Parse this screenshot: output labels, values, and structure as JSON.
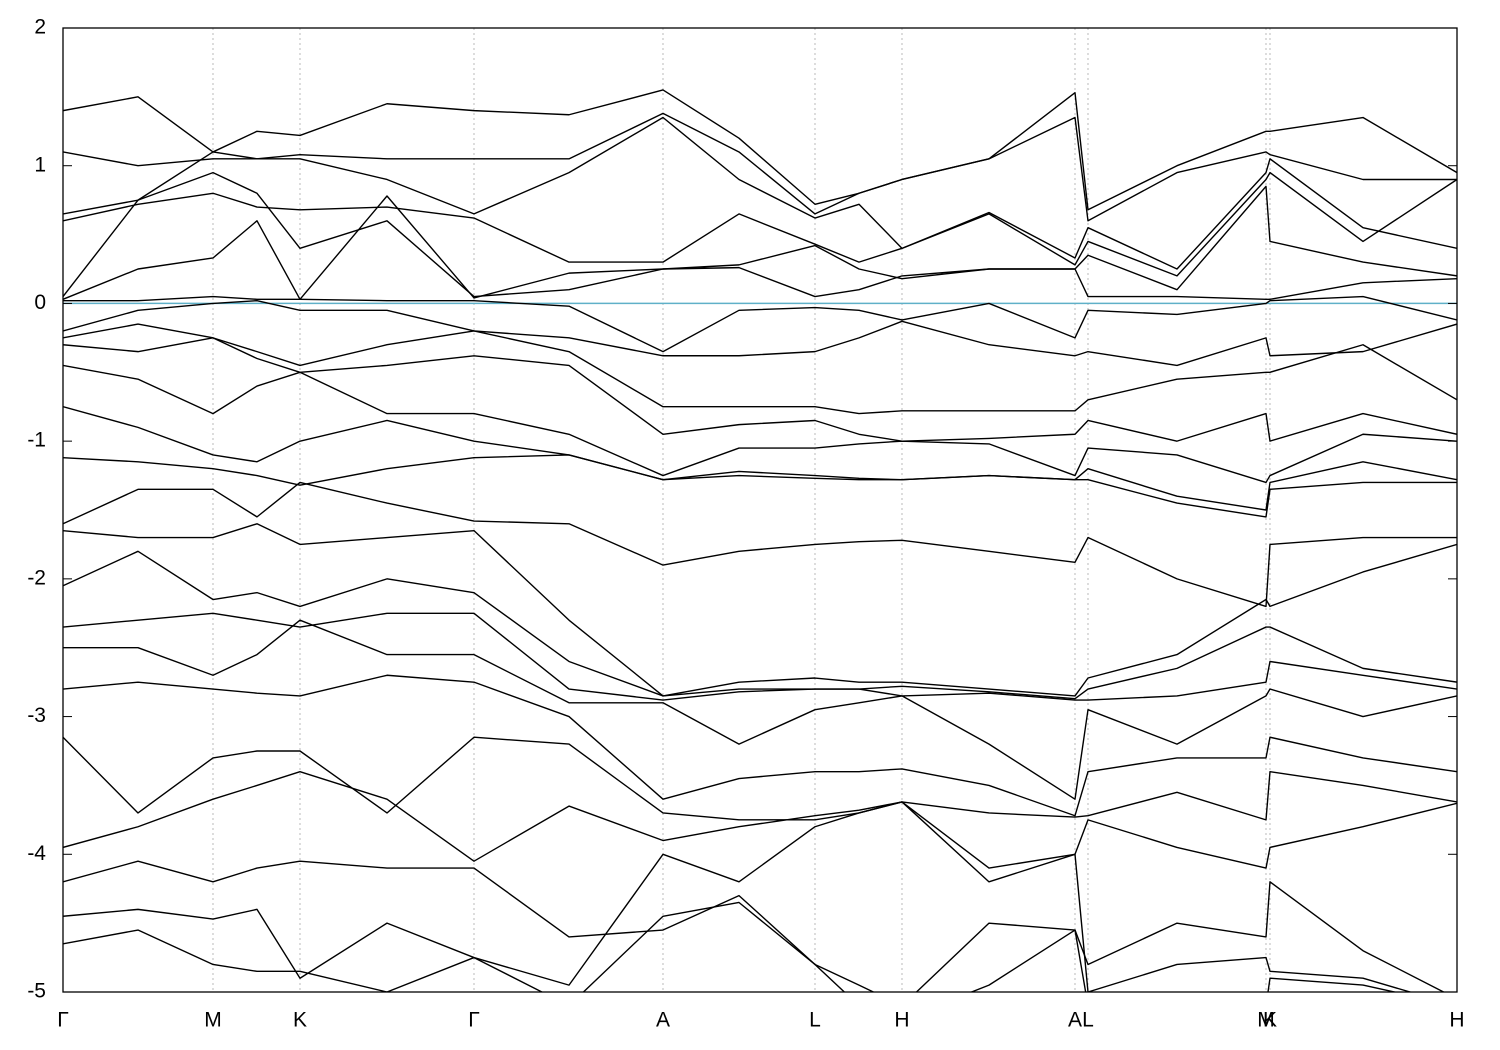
{
  "chart_data": {
    "type": "line",
    "x": [
      0,
      0.375,
      0.75,
      0.97,
      1.185,
      1.62,
      2.055,
      2.53,
      3.0,
      3.38,
      3.76,
      3.98,
      4.195,
      4.63,
      5.06,
      5.125,
      5.57,
      6.015,
      6.035,
      6.5,
      6.97
    ],
    "xlim": [
      0,
      6.97
    ],
    "xticks": [
      {
        "value": 0,
        "label": "Γ"
      },
      {
        "value": 0.75,
        "label": "M"
      },
      {
        "value": 1.185,
        "label": "K"
      },
      {
        "value": 2.055,
        "label": "Γ"
      },
      {
        "value": 3.0,
        "label": "A"
      },
      {
        "value": 3.76,
        "label": "L"
      },
      {
        "value": 4.195,
        "label": "H"
      },
      {
        "value": 5.06,
        "label": "A"
      },
      {
        "value": 5.125,
        "label": "L"
      },
      {
        "value": 6.015,
        "label": "M"
      },
      {
        "value": 6.035,
        "label": "K"
      },
      {
        "value": 6.97,
        "label": "H"
      }
    ],
    "ylim": [
      -5,
      2
    ],
    "yticks": [
      -5,
      -4,
      -3,
      -2,
      -1,
      0,
      1,
      2
    ],
    "grid": true,
    "fermi_level": 0,
    "fermi_color": "#5fb0c8",
    "series": [
      {
        "color": "#000000",
        "values": [
          1.4,
          1.5,
          1.1,
          1.25,
          1.22,
          1.45,
          1.4,
          1.37,
          1.55,
          1.2,
          0.72,
          0.8,
          0.9,
          1.05,
          1.53,
          0.68,
          1.0,
          1.25,
          1.25,
          1.35,
          0.95
        ]
      },
      {
        "color": "#000000",
        "values": [
          1.1,
          1.0,
          1.05,
          1.05,
          1.08,
          1.05,
          1.05,
          1.05,
          1.38,
          1.1,
          0.65,
          0.8,
          0.9,
          1.05,
          1.35,
          0.6,
          0.95,
          1.1,
          1.08,
          0.9,
          0.9
        ]
      },
      {
        "color": "#000000",
        "values": [
          0.65,
          0.75,
          1.1,
          1.05,
          1.05,
          0.9,
          0.65,
          0.95,
          1.35,
          0.9,
          0.62,
          0.72,
          0.4,
          0.66,
          0.33,
          0.55,
          0.25,
          0.95,
          1.05,
          0.55,
          0.4
        ]
      },
      {
        "color": "#000000",
        "values": [
          0.6,
          0.72,
          0.8,
          0.7,
          0.68,
          0.7,
          0.62,
          0.3,
          0.3,
          0.65,
          0.43,
          0.3,
          0.4,
          0.65,
          0.28,
          0.45,
          0.2,
          0.9,
          0.95,
          0.45,
          0.9
        ]
      },
      {
        "color": "#000000",
        "values": [
          0.05,
          0.75,
          0.95,
          0.8,
          0.4,
          0.6,
          0.05,
          0.1,
          0.25,
          0.28,
          0.42,
          0.25,
          0.18,
          0.25,
          0.25,
          0.35,
          0.1,
          0.85,
          0.45,
          0.3,
          0.2
        ]
      },
      {
        "color": "#000000",
        "values": [
          0.03,
          0.25,
          0.33,
          0.6,
          0.03,
          0.78,
          0.04,
          0.22,
          0.25,
          0.26,
          0.05,
          0.1,
          0.2,
          0.25,
          0.25,
          0.05,
          0.05,
          0.03,
          0.03,
          0.15,
          0.18
        ]
      },
      {
        "color": "#000000",
        "values": [
          0.02,
          0.02,
          0.05,
          0.03,
          0.03,
          0.02,
          0.02,
          -0.02,
          -0.35,
          -0.05,
          -0.03,
          -0.05,
          -0.12,
          0.0,
          -0.25,
          -0.05,
          -0.08,
          0.0,
          0.02,
          0.05,
          -0.12
        ]
      },
      {
        "color": "#000000",
        "values": [
          -0.2,
          -0.05,
          0.0,
          0.02,
          -0.05,
          -0.05,
          -0.2,
          -0.25,
          -0.38,
          -0.38,
          -0.35,
          -0.25,
          -0.13,
          -0.3,
          -0.38,
          -0.35,
          -0.45,
          -0.25,
          -0.38,
          -0.35,
          -0.15
        ]
      },
      {
        "color": "#000000",
        "values": [
          -0.25,
          -0.15,
          -0.25,
          -0.35,
          -0.45,
          -0.3,
          -0.2,
          -0.35,
          -0.75,
          -0.75,
          -0.75,
          -0.8,
          -0.78,
          -0.78,
          -0.78,
          -0.7,
          -0.55,
          -0.5,
          -0.5,
          -0.3,
          -0.7
        ]
      },
      {
        "color": "#000000",
        "values": [
          -0.3,
          -0.35,
          -0.25,
          -0.4,
          -0.5,
          -0.45,
          -0.38,
          -0.45,
          -0.95,
          -0.88,
          -0.85,
          -0.95,
          -1.0,
          -0.98,
          -0.95,
          -0.85,
          -1.0,
          -0.8,
          -1.0,
          -0.8,
          -0.95
        ]
      },
      {
        "color": "#000000",
        "values": [
          -0.45,
          -0.55,
          -0.8,
          -0.6,
          -0.5,
          -0.8,
          -0.8,
          -0.95,
          -1.25,
          -1.05,
          -1.05,
          -1.02,
          -1.0,
          -1.02,
          -1.25,
          -1.05,
          -1.1,
          -1.3,
          -1.25,
          -0.95,
          -1.0
        ]
      },
      {
        "color": "#000000",
        "values": [
          -0.75,
          -0.9,
          -1.1,
          -1.15,
          -1.0,
          -0.85,
          -1.0,
          -1.1,
          -1.28,
          -1.22,
          -1.25,
          -1.27,
          -1.28,
          -1.25,
          -1.28,
          -1.2,
          -1.4,
          -1.5,
          -1.3,
          -1.15,
          -1.28
        ]
      },
      {
        "color": "#000000",
        "values": [
          -1.12,
          -1.15,
          -1.2,
          -1.25,
          -1.32,
          -1.2,
          -1.12,
          -1.1,
          -1.28,
          -1.25,
          -1.27,
          -1.28,
          -1.28,
          -1.25,
          -1.28,
          -1.28,
          -1.45,
          -1.55,
          -1.35,
          -1.3,
          -1.3
        ]
      },
      {
        "color": "#000000",
        "values": [
          -1.6,
          -1.35,
          -1.35,
          -1.55,
          -1.3,
          -1.45,
          -1.58,
          -1.6,
          -1.9,
          -1.8,
          -1.75,
          -1.73,
          -1.72,
          -1.8,
          -1.88,
          -1.7,
          -2.0,
          -2.2,
          -1.75,
          -1.7,
          -1.7
        ]
      },
      {
        "color": "#000000",
        "values": [
          -1.65,
          -1.7,
          -1.7,
          -1.6,
          -1.75,
          -1.7,
          -1.65,
          -2.3,
          -2.85,
          -2.75,
          -2.72,
          -2.75,
          -2.75,
          -2.8,
          -2.85,
          -2.72,
          -2.55,
          -2.15,
          -2.2,
          -1.95,
          -1.75
        ]
      },
      {
        "color": "#000000",
        "values": [
          -2.05,
          -1.8,
          -2.15,
          -2.1,
          -2.2,
          -2.0,
          -2.1,
          -2.6,
          -2.85,
          -2.8,
          -2.8,
          -2.8,
          -2.78,
          -2.82,
          -2.87,
          -2.8,
          -2.65,
          -2.35,
          -2.35,
          -2.65,
          -2.75
        ]
      },
      {
        "color": "#000000",
        "values": [
          -2.35,
          -2.3,
          -2.25,
          -2.3,
          -2.35,
          -2.25,
          -2.25,
          -2.8,
          -2.88,
          -2.82,
          -2.8,
          -2.8,
          -2.85,
          -2.83,
          -2.88,
          -2.88,
          -2.85,
          -2.75,
          -2.6,
          -2.7,
          -2.8
        ]
      },
      {
        "color": "#000000",
        "values": [
          -2.5,
          -2.5,
          -2.7,
          -2.55,
          -2.3,
          -2.55,
          -2.55,
          -2.9,
          -2.9,
          -3.2,
          -2.95,
          -2.9,
          -2.85,
          -3.2,
          -3.6,
          -2.95,
          -3.2,
          -2.85,
          -2.8,
          -3.0,
          -2.85
        ]
      },
      {
        "color": "#000000",
        "values": [
          -2.8,
          -2.75,
          -2.8,
          -2.83,
          -2.85,
          -2.7,
          -2.75,
          -3.0,
          -3.6,
          -3.45,
          -3.4,
          -3.4,
          -3.38,
          -3.5,
          -3.72,
          -3.4,
          -3.3,
          -3.3,
          -3.15,
          -3.3,
          -3.4
        ]
      },
      {
        "color": "#000000",
        "values": [
          -3.15,
          -3.7,
          -3.3,
          -3.25,
          -3.25,
          -3.7,
          -3.15,
          -3.2,
          -3.7,
          -3.75,
          -3.75,
          -3.7,
          -3.62,
          -3.7,
          -3.73,
          -3.72,
          -3.55,
          -3.75,
          -3.4,
          -3.5,
          -3.62
        ]
      },
      {
        "color": "#000000",
        "values": [
          -3.95,
          -3.8,
          -3.6,
          -3.5,
          -3.4,
          -3.6,
          -4.05,
          -3.65,
          -3.9,
          -3.8,
          -3.72,
          -3.68,
          -3.62,
          -4.1,
          -4.0,
          -3.75,
          -3.95,
          -4.1,
          -3.95,
          -3.8,
          -3.63
        ]
      },
      {
        "color": "#000000",
        "values": [
          -4.2,
          -4.05,
          -4.2,
          -4.1,
          -4.05,
          -4.1,
          -4.1,
          -4.6,
          -4.55,
          -4.3,
          -4.8,
          -4.95,
          -5.1,
          -4.5,
          -4.55,
          -4.8,
          -4.5,
          -4.6,
          -4.2,
          -4.7,
          -5.05
        ]
      },
      {
        "color": "#000000",
        "values": [
          -4.45,
          -4.4,
          -4.47,
          -4.4,
          -4.9,
          -4.5,
          -4.75,
          -4.95,
          -4.0,
          -4.2,
          -3.8,
          -3.7,
          -3.62,
          -4.2,
          -4.0,
          -5.0,
          -4.8,
          -4.75,
          -4.85,
          -4.9,
          -5.1
        ]
      },
      {
        "color": "#000000",
        "values": [
          -4.65,
          -4.55,
          -4.8,
          -4.85,
          -4.85,
          -5.0,
          -4.75,
          -5.1,
          -4.45,
          -4.35,
          -4.8,
          -5.1,
          -5.2,
          -4.95,
          -4.55,
          -5.1,
          -5.1,
          -5.1,
          -4.9,
          -4.95,
          -5.1
        ]
      }
    ]
  }
}
